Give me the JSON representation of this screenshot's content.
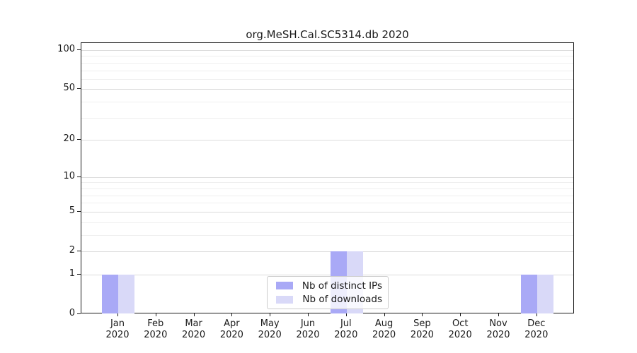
{
  "chart_data": {
    "type": "bar",
    "title": "org.MeSH.Cal.SC5314.db 2020",
    "categories": [
      "Jan",
      "Feb",
      "Mar",
      "Apr",
      "May",
      "Jun",
      "Jul",
      "Aug",
      "Sep",
      "Oct",
      "Nov",
      "Dec"
    ],
    "x_tick_second_line": "2020",
    "series": [
      {
        "name": "Nb of distinct IPs",
        "color": "#a9a9f6",
        "values": [
          1,
          0,
          0,
          0,
          0,
          0,
          2,
          0,
          0,
          0,
          0,
          1
        ]
      },
      {
        "name": "Nb of downloads",
        "color": "#d9d9f8",
        "values": [
          1,
          0,
          0,
          0,
          0,
          0,
          2,
          0,
          0,
          0,
          0,
          1
        ]
      }
    ],
    "yscale": "log1p",
    "ylim": [
      0,
      113
    ],
    "y_major_ticks": [
      0,
      1,
      2,
      5,
      10,
      20,
      50,
      100
    ],
    "y_minor_gridlines": [
      3,
      4,
      6,
      7,
      8,
      9,
      30,
      40,
      60,
      70,
      80,
      90
    ],
    "grid": "horizontal",
    "legend_position": "bottom-center"
  },
  "colors": {
    "background": "#ffffff",
    "spine": "#1a1a1a",
    "grid_major": "#dcdcdc",
    "grid_minor": "#efefef",
    "text": "#1a1a1a",
    "legend_border": "#cccccc"
  }
}
